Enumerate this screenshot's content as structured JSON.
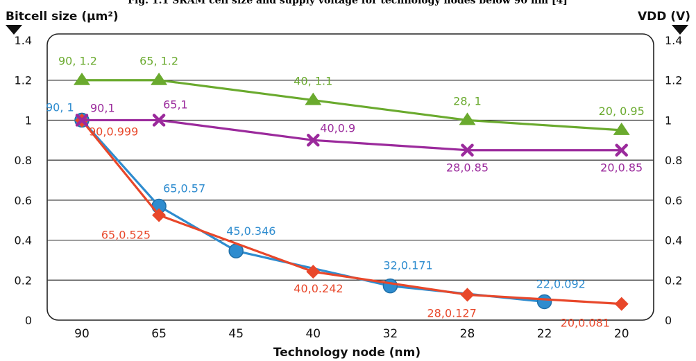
{
  "caption": "Fig. 1.1 SRAM cell size and supply voltage for technology nodes below 90 nm [4]",
  "chart_data": {
    "type": "line",
    "categories": [
      "90",
      "65",
      "45",
      "40",
      "32",
      "28",
      "22",
      "20"
    ],
    "xlabel": "Technology node (nm)",
    "ylabel_left": "Bitcell size (µm²)",
    "ylabel_right": "VDD (V)",
    "ylim": [
      0,
      1.4
    ],
    "yticks": [
      "0",
      "0.2",
      "0.4",
      "0.6",
      "0.8",
      "1",
      "1.2",
      "1.4"
    ],
    "grid": true,
    "legend": "none",
    "series": [
      {
        "color": "#6aaa2e",
        "marker": "triangle",
        "points": [
          {
            "x": "90",
            "y": 1.2,
            "label": "90, 1.2"
          },
          {
            "x": "65",
            "y": 1.2,
            "label": "65, 1.2"
          },
          {
            "x": "40",
            "y": 1.1,
            "label": "40, 1.1"
          },
          {
            "x": "28",
            "y": 1.0,
            "label": "28, 1"
          },
          {
            "x": "20",
            "y": 0.95,
            "label": "20, 0.95"
          }
        ]
      },
      {
        "color": "#9b2a9c",
        "marker": "x",
        "points": [
          {
            "x": "90",
            "y": 1.0,
            "label": "90,1"
          },
          {
            "x": "65",
            "y": 1.0,
            "label": "65,1"
          },
          {
            "x": "40",
            "y": 0.9,
            "label": "40,0.9"
          },
          {
            "x": "28",
            "y": 0.85,
            "label": "28,0.85"
          },
          {
            "x": "20",
            "y": 0.85,
            "label": "20,0.85"
          }
        ]
      },
      {
        "color": "#e8472a",
        "marker": "diamond",
        "points": [
          {
            "x": "90",
            "y": 0.999,
            "label": "90,0.999"
          },
          {
            "x": "65",
            "y": 0.525,
            "label": "65,0.525"
          },
          {
            "x": "40",
            "y": 0.242,
            "label": "40,0.242"
          },
          {
            "x": "28",
            "y": 0.127,
            "label": "28,0.127"
          },
          {
            "x": "20",
            "y": 0.081,
            "label": "20,0.081"
          }
        ]
      },
      {
        "color": "#2e8ccf",
        "marker": "circle",
        "points": [
          {
            "x": "90",
            "y": 1.0,
            "label": "90, 1"
          },
          {
            "x": "65",
            "y": 0.57,
            "label": "65,0.57"
          },
          {
            "x": "45",
            "y": 0.346,
            "label": "45,0.346"
          },
          {
            "x": "32",
            "y": 0.171,
            "label": "32,0.171"
          },
          {
            "x": "22",
            "y": 0.092,
            "label": "22,0.092"
          }
        ]
      }
    ]
  }
}
